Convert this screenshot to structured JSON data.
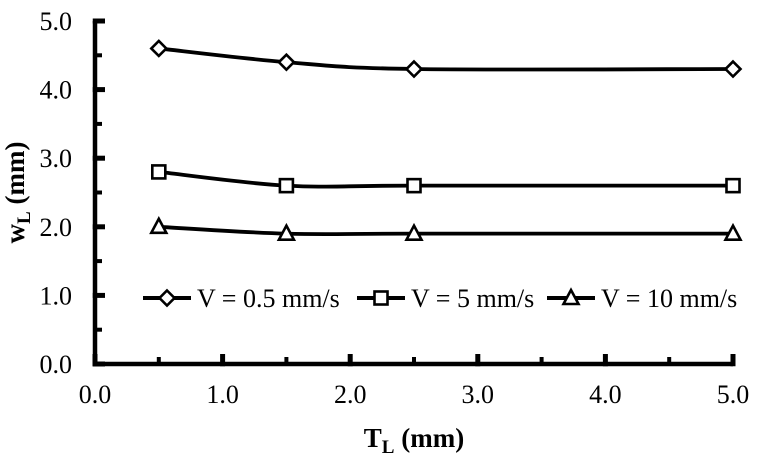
{
  "figure": {
    "background": "#ffffff",
    "ink": "#000000",
    "marker_fill": "#ffffff"
  },
  "chart_data": {
    "type": "line",
    "title": "",
    "xlabel": {
      "symbol": "T",
      "subscript": "L",
      "unit": "(mm)"
    },
    "ylabel": {
      "symbol": "w",
      "subscript": "L",
      "unit": "(mm)"
    },
    "xlim": [
      0.0,
      5.0
    ],
    "ylim": [
      0.0,
      5.0
    ],
    "x_tick_labels": [
      "0.0",
      "1.0",
      "2.0",
      "3.0",
      "4.0",
      "5.0"
    ],
    "y_tick_labels": [
      "0.0",
      "1.0",
      "2.0",
      "3.0",
      "4.0",
      "5.0"
    ],
    "minor_tick_step": 0.5,
    "grid": false,
    "line_style": "smoothed",
    "legend_position": "inside-bottom-row",
    "series": [
      {
        "name": "V = 0.5 mm/s",
        "marker": "diamond",
        "color": "#000000",
        "points": [
          [
            0.5,
            4.6
          ],
          [
            1.5,
            4.4
          ],
          [
            2.5,
            4.3
          ],
          [
            5.0,
            4.3
          ]
        ]
      },
      {
        "name": "V = 5 mm/s",
        "marker": "square",
        "color": "#000000",
        "points": [
          [
            0.5,
            2.8
          ],
          [
            1.5,
            2.6
          ],
          [
            2.5,
            2.6
          ],
          [
            5.0,
            2.6
          ]
        ]
      },
      {
        "name": "V = 10 mm/s",
        "marker": "triangle",
        "color": "#000000",
        "points": [
          [
            0.5,
            2.0
          ],
          [
            1.5,
            1.9
          ],
          [
            2.5,
            1.9
          ],
          [
            5.0,
            1.9
          ]
        ]
      }
    ]
  }
}
